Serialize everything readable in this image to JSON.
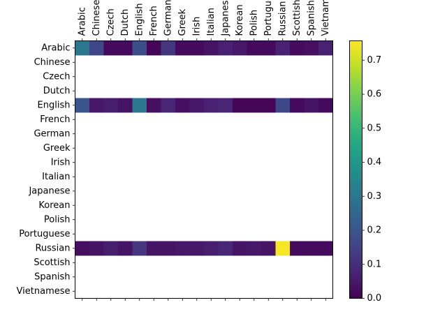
{
  "chart_data": {
    "type": "heatmap",
    "title": "",
    "xlabel": "",
    "ylabel": "",
    "x_categories": [
      "Arabic",
      "Chinese",
      "Czech",
      "Dutch",
      "English",
      "French",
      "German",
      "Greek",
      "Irish",
      "Italian",
      "Japanese",
      "Korean",
      "Polish",
      "Portuguese",
      "Russian",
      "Scottish",
      "Spanish",
      "Vietnamese"
    ],
    "x_tick_labels_visible": [
      "Arabic",
      "Chinese",
      "Czech",
      "Dutch",
      "English",
      "French",
      "German",
      "Greek",
      "Irish",
      "Italian",
      "Japanese",
      "Korean",
      "Polish",
      "Portugue",
      "Russian",
      "Scottish",
      "Spanish",
      "Vietnam"
    ],
    "y_categories": [
      "Arabic",
      "Chinese",
      "Czech",
      "Dutch",
      "English",
      "French",
      "German",
      "Greek",
      "Irish",
      "Italian",
      "Japanese",
      "Korean",
      "Polish",
      "Portuguese",
      "Russian",
      "Scottish",
      "Spanish",
      "Vietnamese"
    ],
    "rows": [
      [
        0.3,
        0.16,
        0.02,
        0.02,
        0.18,
        0.01,
        0.12,
        0.02,
        0.02,
        0.04,
        0.07,
        0.05,
        0.02,
        0.02,
        0.07,
        0.02,
        0.03,
        0.07
      ],
      null,
      null,
      null,
      [
        0.2,
        0.05,
        0.06,
        0.04,
        0.3,
        0.03,
        0.08,
        0.03,
        0.05,
        0.07,
        0.08,
        0.01,
        0.01,
        0.01,
        0.16,
        0.02,
        0.04,
        0.02
      ],
      null,
      null,
      null,
      null,
      null,
      null,
      null,
      null,
      null,
      [
        0.03,
        0.04,
        0.06,
        0.04,
        0.12,
        0.04,
        0.04,
        0.05,
        0.05,
        0.06,
        0.08,
        0.04,
        0.05,
        0.04,
        0.75,
        0.02,
        0.02,
        0.02
      ],
      null,
      null,
      null
    ],
    "colormap": "viridis",
    "colorbar": {
      "min": 0.0,
      "max": 0.757,
      "ticks": [
        "0.0",
        "0.1",
        "0.2",
        "0.3",
        "0.4",
        "0.5",
        "0.6",
        "0.7"
      ]
    },
    "empty_cell_color": "#ffffff",
    "grid": false,
    "legend": "colorbar-right"
  }
}
